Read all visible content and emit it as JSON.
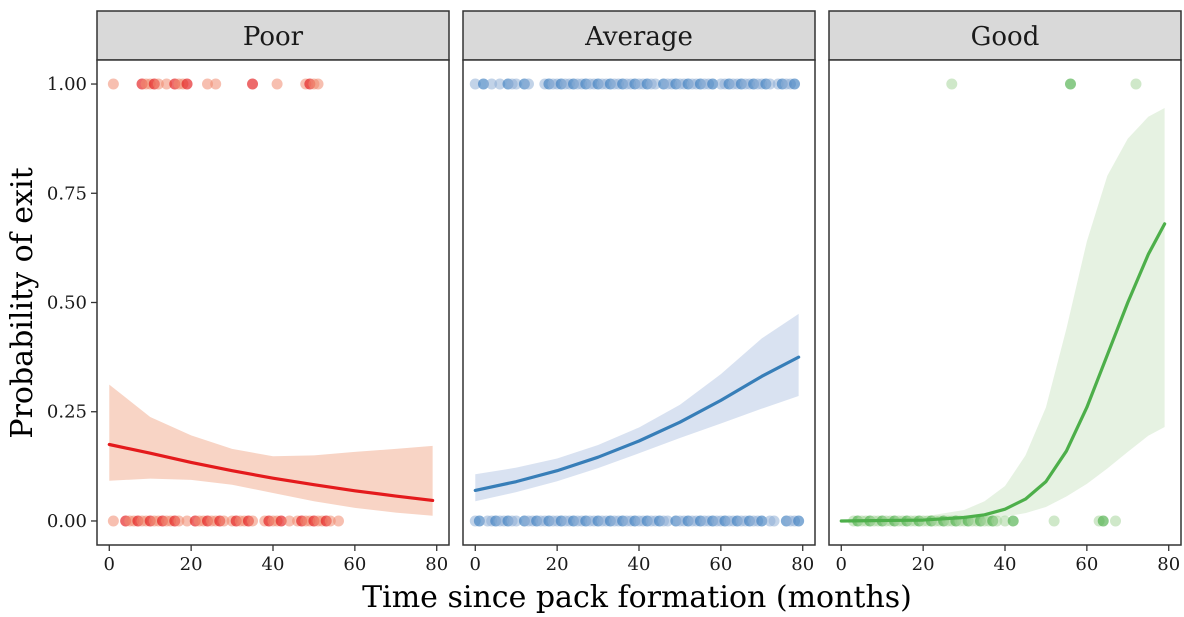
{
  "chart_data": {
    "type": "scatter",
    "xlabel": "Time since pack formation (months)",
    "ylabel": "Probability of exit",
    "xlim": [
      -3,
      83
    ],
    "ylim": [
      -0.055,
      1.055
    ],
    "x_ticks": [
      0,
      20,
      40,
      60,
      80
    ],
    "y_ticks": [
      0,
      0.25,
      0.5,
      0.75,
      1.0
    ],
    "y_tick_labels": [
      "0.00",
      "0.25",
      "0.50",
      "0.75",
      "1.00"
    ],
    "grid": false,
    "legend": "none",
    "panels": [
      {
        "name": "Poor",
        "point_color": "#f08a6f",
        "dark_point_color": "#e41a1c",
        "line_color": "#e41a1c",
        "band_color": "#f5c2ad",
        "points_exit": [
          1,
          8,
          9,
          10,
          11,
          12,
          14,
          16,
          17,
          18,
          19,
          24,
          26,
          35,
          41,
          48,
          49,
          50,
          51
        ],
        "points_stay": [
          1,
          4,
          5,
          6,
          7,
          8,
          9,
          10,
          11,
          12,
          13,
          14,
          15,
          16,
          17,
          19,
          21,
          22,
          23,
          24,
          25,
          26,
          27,
          28,
          30,
          31,
          32,
          33,
          34,
          35,
          38,
          39,
          40,
          41,
          42,
          44,
          46,
          47,
          48,
          49,
          50,
          51,
          52,
          53,
          54,
          56
        ],
        "fit": {
          "x": [
            0,
            10,
            20,
            30,
            40,
            50,
            60,
            70,
            79
          ],
          "y": [
            0.175,
            0.155,
            0.134,
            0.115,
            0.098,
            0.083,
            0.069,
            0.057,
            0.047
          ],
          "lower": [
            0.092,
            0.097,
            0.094,
            0.083,
            0.064,
            0.045,
            0.03,
            0.019,
            0.012
          ],
          "upper": [
            0.312,
            0.238,
            0.196,
            0.165,
            0.148,
            0.15,
            0.158,
            0.165,
            0.172
          ]
        }
      },
      {
        "name": "Average",
        "point_color": "#8fafd6",
        "dark_point_color": "#3f7fc0",
        "line_color": "#377eb8",
        "band_color": "#c9d6eb",
        "points_exit": [
          0,
          2,
          4,
          6,
          8,
          9,
          10,
          12,
          13,
          17,
          18,
          19,
          20,
          21,
          22,
          23,
          24,
          25,
          26,
          27,
          28,
          29,
          30,
          31,
          32,
          33,
          34,
          35,
          36,
          37,
          38,
          39,
          40,
          41,
          42,
          43,
          44,
          46,
          47,
          48,
          49,
          50,
          51,
          52,
          53,
          54,
          55,
          56,
          57,
          58,
          60,
          61,
          62,
          63,
          64,
          65,
          66,
          67,
          68,
          69,
          70,
          71,
          72,
          74,
          75,
          76,
          77,
          78
        ],
        "points_stay": [
          0,
          1,
          3,
          4,
          5,
          6,
          7,
          8,
          9,
          10,
          12,
          13,
          14,
          15,
          16,
          17,
          18,
          19,
          20,
          21,
          22,
          23,
          24,
          25,
          26,
          27,
          28,
          29,
          30,
          31,
          32,
          33,
          34,
          35,
          36,
          37,
          38,
          39,
          40,
          41,
          42,
          43,
          44,
          45,
          46,
          47,
          49,
          50,
          51,
          52,
          53,
          54,
          55,
          56,
          57,
          58,
          59,
          60,
          61,
          62,
          63,
          64,
          65,
          66,
          67,
          68,
          69,
          70,
          72,
          73,
          76,
          77,
          78,
          79
        ],
        "fit": {
          "x": [
            0,
            10,
            20,
            30,
            40,
            50,
            60,
            70,
            79
          ],
          "y": [
            0.07,
            0.09,
            0.115,
            0.146,
            0.183,
            0.226,
            0.276,
            0.331,
            0.375
          ],
          "lower": [
            0.045,
            0.066,
            0.091,
            0.121,
            0.155,
            0.19,
            0.223,
            0.257,
            0.286
          ],
          "upper": [
            0.107,
            0.122,
            0.143,
            0.174,
            0.214,
            0.266,
            0.336,
            0.418,
            0.474
          ]
        }
      },
      {
        "name": "Good",
        "point_color": "#a8d69d",
        "dark_point_color": "#4daf4a",
        "line_color": "#4daf4a",
        "band_color": "#dbecd6",
        "points_exit": [
          27,
          56,
          72
        ],
        "points_stay": [
          3,
          4,
          5,
          6,
          7,
          8,
          9,
          10,
          11,
          12,
          13,
          14,
          15,
          16,
          17,
          18,
          19,
          20,
          21,
          22,
          23,
          24,
          25,
          26,
          27,
          28,
          29,
          30,
          31,
          32,
          33,
          34,
          35,
          36,
          37,
          38,
          40,
          42,
          52,
          63,
          64,
          67
        ],
        "fit": {
          "x": [
            0,
            10,
            20,
            30,
            35,
            40,
            45,
            50,
            55,
            60,
            65,
            70,
            75,
            79
          ],
          "y": [
            0.0,
            0.001,
            0.002,
            0.008,
            0.014,
            0.027,
            0.05,
            0.09,
            0.16,
            0.26,
            0.38,
            0.5,
            0.61,
            0.68
          ],
          "lower": [
            0.0,
            0.0,
            0.0,
            0.002,
            0.005,
            0.01,
            0.018,
            0.032,
            0.056,
            0.085,
            0.12,
            0.158,
            0.195,
            0.215
          ],
          "upper": [
            0.003,
            0.005,
            0.01,
            0.025,
            0.045,
            0.08,
            0.15,
            0.26,
            0.44,
            0.64,
            0.79,
            0.875,
            0.925,
            0.945
          ]
        }
      }
    ]
  }
}
